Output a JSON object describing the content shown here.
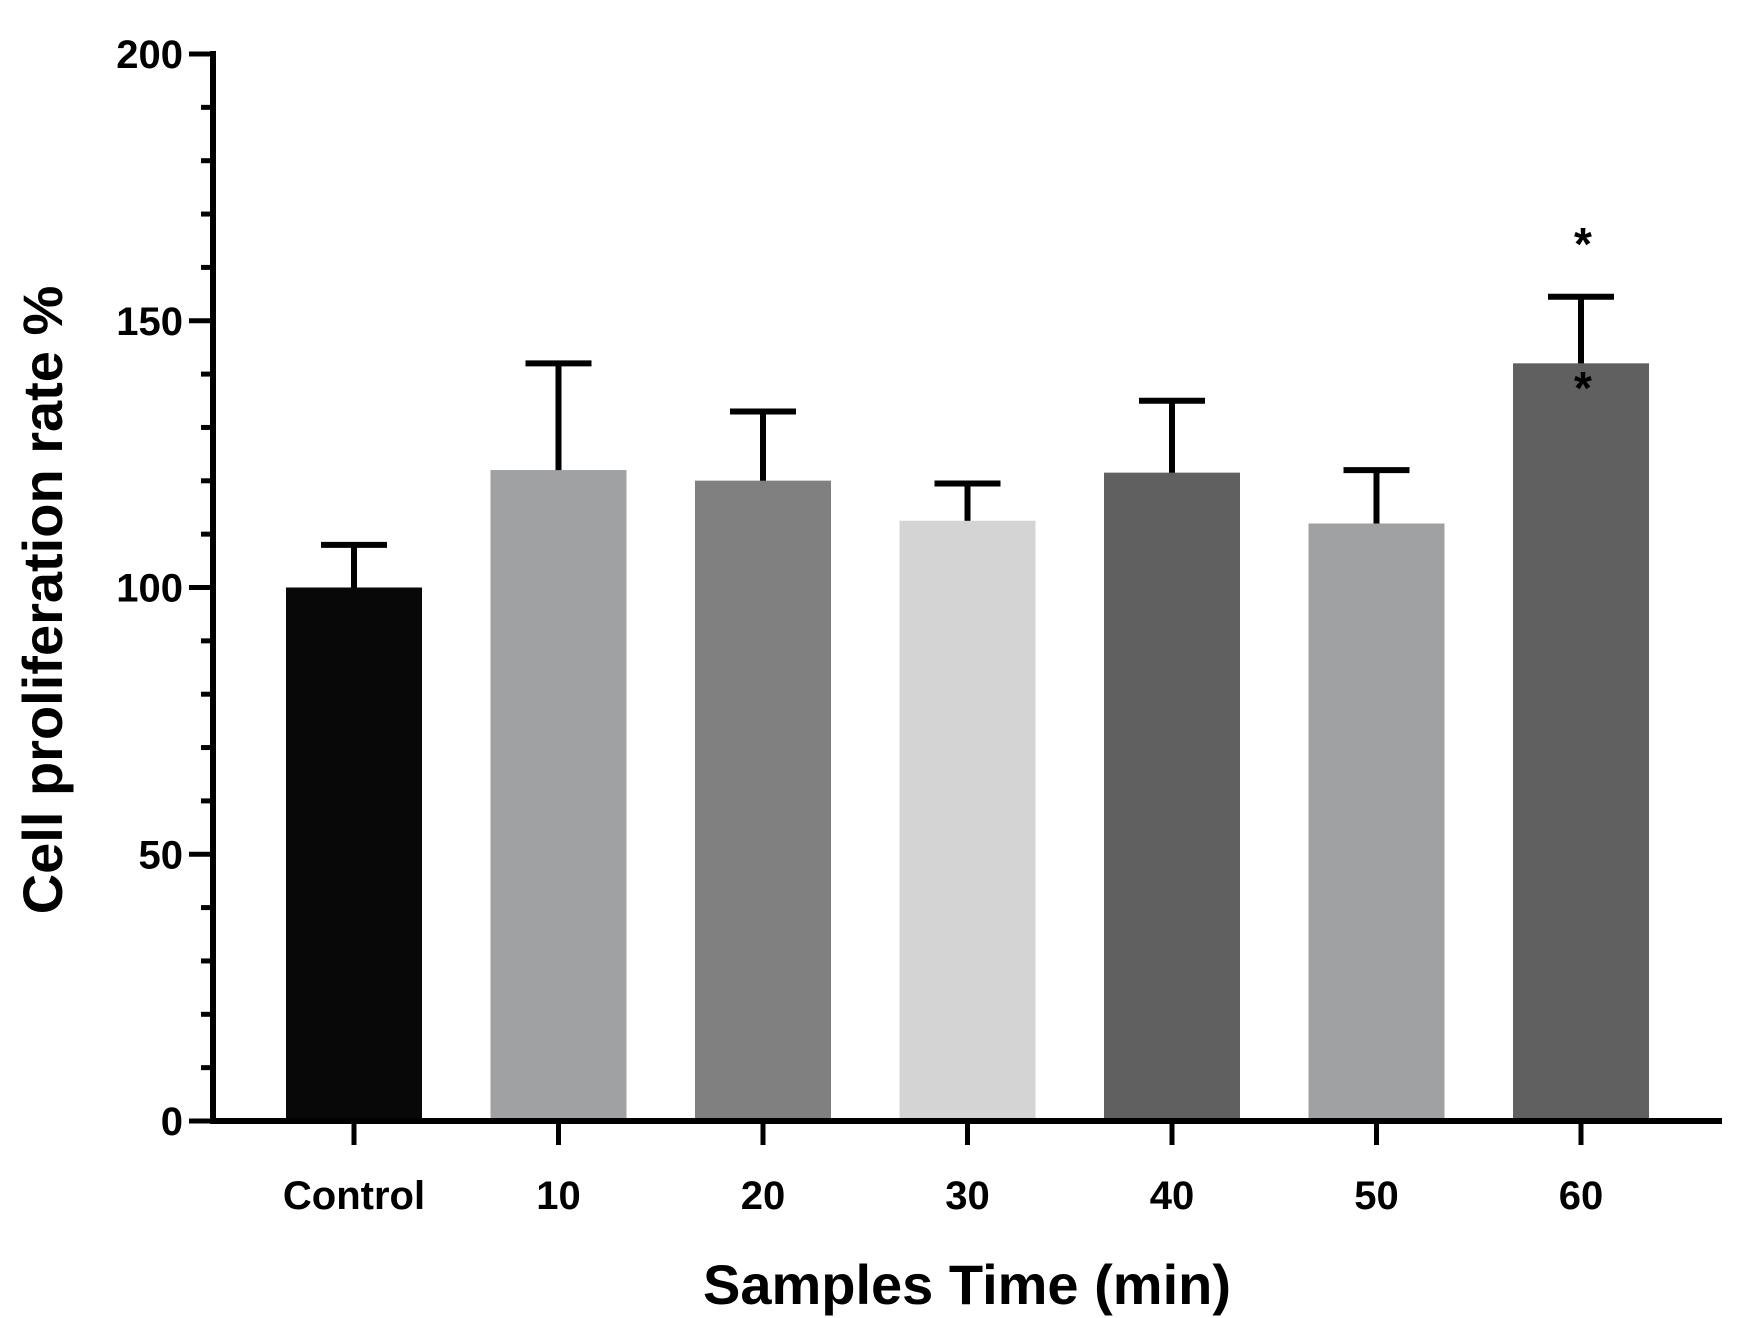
{
  "chart_data": {
    "type": "bar",
    "title": "",
    "xlabel": "Samples Time (min)",
    "ylabel": "Cell proliferation rate %",
    "ylim": [
      0,
      200
    ],
    "yticks": [
      0,
      50,
      100,
      150,
      200
    ],
    "minor_tick_step": 10,
    "grid": false,
    "categories": [
      "Control",
      "10",
      "20",
      "30",
      "40",
      "50",
      "60"
    ],
    "values": [
      100,
      122,
      120,
      112.5,
      121.5,
      112,
      142
    ],
    "errors": [
      8,
      20,
      13,
      7,
      13.5,
      10,
      12.5
    ],
    "colors": [
      "#080808",
      "#a0a1a3",
      "#808080",
      "#d4d4d4",
      "#5f605f",
      "#a0a1a3",
      "#5f605f"
    ],
    "annotations": [
      {
        "category": "60",
        "text": "*",
        "at_value": 167
      },
      {
        "category": "60",
        "text": "*",
        "at_value": 140
      }
    ]
  }
}
